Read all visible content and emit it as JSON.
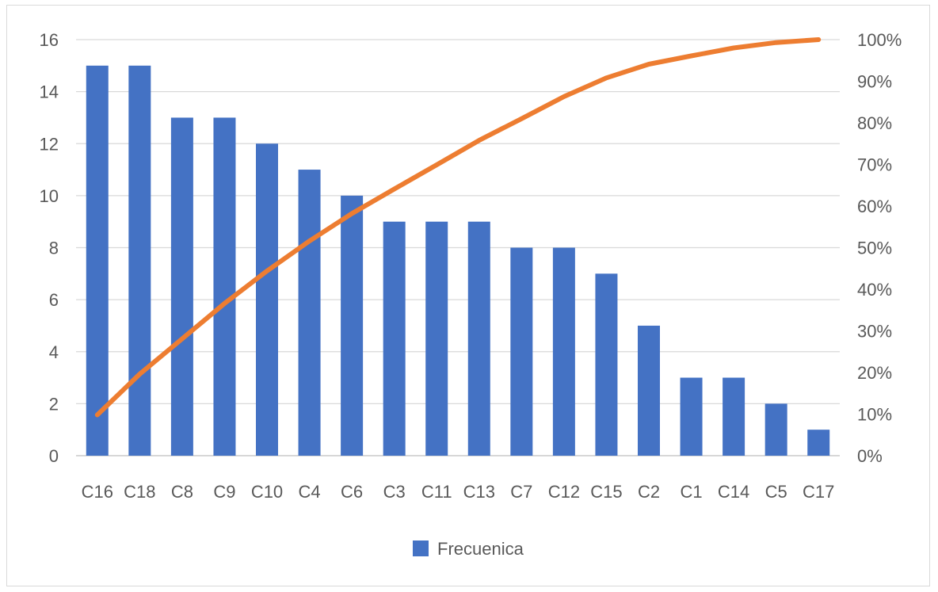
{
  "chart_data": {
    "type": "bar",
    "categories": [
      "C16",
      "C18",
      "C8",
      "C9",
      "C10",
      "C4",
      "C6",
      "C3",
      "C11",
      "C13",
      "C7",
      "C12",
      "C15",
      "C2",
      "C1",
      "C14",
      "C5",
      "C17"
    ],
    "series": [
      {
        "name": "Frecuenica",
        "type": "bar",
        "axis": "left",
        "color": "#4472c4",
        "values": [
          15,
          15,
          13,
          13,
          12,
          11,
          10,
          9,
          9,
          9,
          8,
          8,
          7,
          5,
          3,
          3,
          2,
          1
        ]
      },
      {
        "type": "line",
        "axis": "right",
        "color": "#ed7d31",
        "values": [
          0.098,
          0.196,
          0.281,
          0.366,
          0.444,
          0.516,
          0.582,
          0.641,
          0.699,
          0.758,
          0.81,
          0.863,
          0.908,
          0.941,
          0.961,
          0.98,
          0.993,
          1.0
        ]
      }
    ],
    "y_left": {
      "range": [
        0,
        16
      ],
      "ticks": [
        "0",
        "2",
        "4",
        "6",
        "8",
        "10",
        "12",
        "14",
        "16"
      ]
    },
    "y_right": {
      "range": [
        0,
        1
      ],
      "ticks": [
        "0%",
        "10%",
        "20%",
        "30%",
        "40%",
        "50%",
        "60%",
        "70%",
        "80%",
        "90%",
        "100%"
      ]
    },
    "grid": true,
    "legend": {
      "position": "bottom",
      "label": "Frecuenica"
    },
    "title": "",
    "xlabel": "",
    "ylabel": ""
  }
}
